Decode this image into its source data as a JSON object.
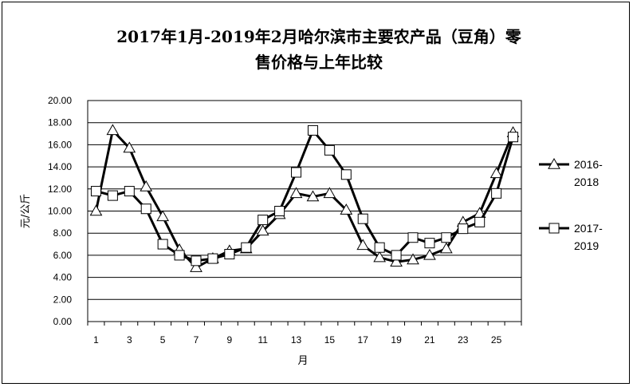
{
  "chart_data": {
    "type": "line",
    "title_line1": "2017年1月-2019年2月哈尔滨市主要农产品（豆角）零",
    "title_line2": "售价格与上年比较",
    "xlabel": "月",
    "ylabel": "元/公斤",
    "x": [
      1,
      2,
      3,
      4,
      5,
      6,
      7,
      8,
      9,
      10,
      11,
      12,
      13,
      14,
      15,
      16,
      17,
      18,
      19,
      20,
      21,
      22,
      23,
      24,
      25,
      26
    ],
    "xticks": [
      "1",
      "3",
      "5",
      "7",
      "9",
      "11",
      "13",
      "15",
      "17",
      "19",
      "21",
      "23",
      "25"
    ],
    "yticks": [
      "0.00",
      "2.00",
      "4.00",
      "6.00",
      "8.00",
      "10.00",
      "12.00",
      "14.00",
      "16.00",
      "18.00",
      "20.00"
    ],
    "ylim": [
      0,
      20
    ],
    "grid": true,
    "legend_position": "right",
    "series": [
      {
        "name": "2016-2018",
        "legend_lines": [
          "2016-",
          "2018"
        ],
        "marker": "triangle",
        "values": [
          10.0,
          17.3,
          15.7,
          12.2,
          9.5,
          6.5,
          4.9,
          5.7,
          6.4,
          6.6,
          8.2,
          9.7,
          11.6,
          11.3,
          11.6,
          10.1,
          6.9,
          5.8,
          5.4,
          5.6,
          6.0,
          6.6,
          9.0,
          9.8,
          13.4,
          17.1
        ]
      },
      {
        "name": "2017-2019",
        "legend_lines": [
          "2017-",
          "2019"
        ],
        "marker": "square",
        "values": [
          11.8,
          11.4,
          11.8,
          10.2,
          7.0,
          6.0,
          5.5,
          5.7,
          6.1,
          6.7,
          9.2,
          10.0,
          13.5,
          17.3,
          15.5,
          13.3,
          9.3,
          6.7,
          6.0,
          7.6,
          7.1,
          7.6,
          8.4,
          9.0,
          11.6,
          16.7
        ]
      }
    ]
  }
}
